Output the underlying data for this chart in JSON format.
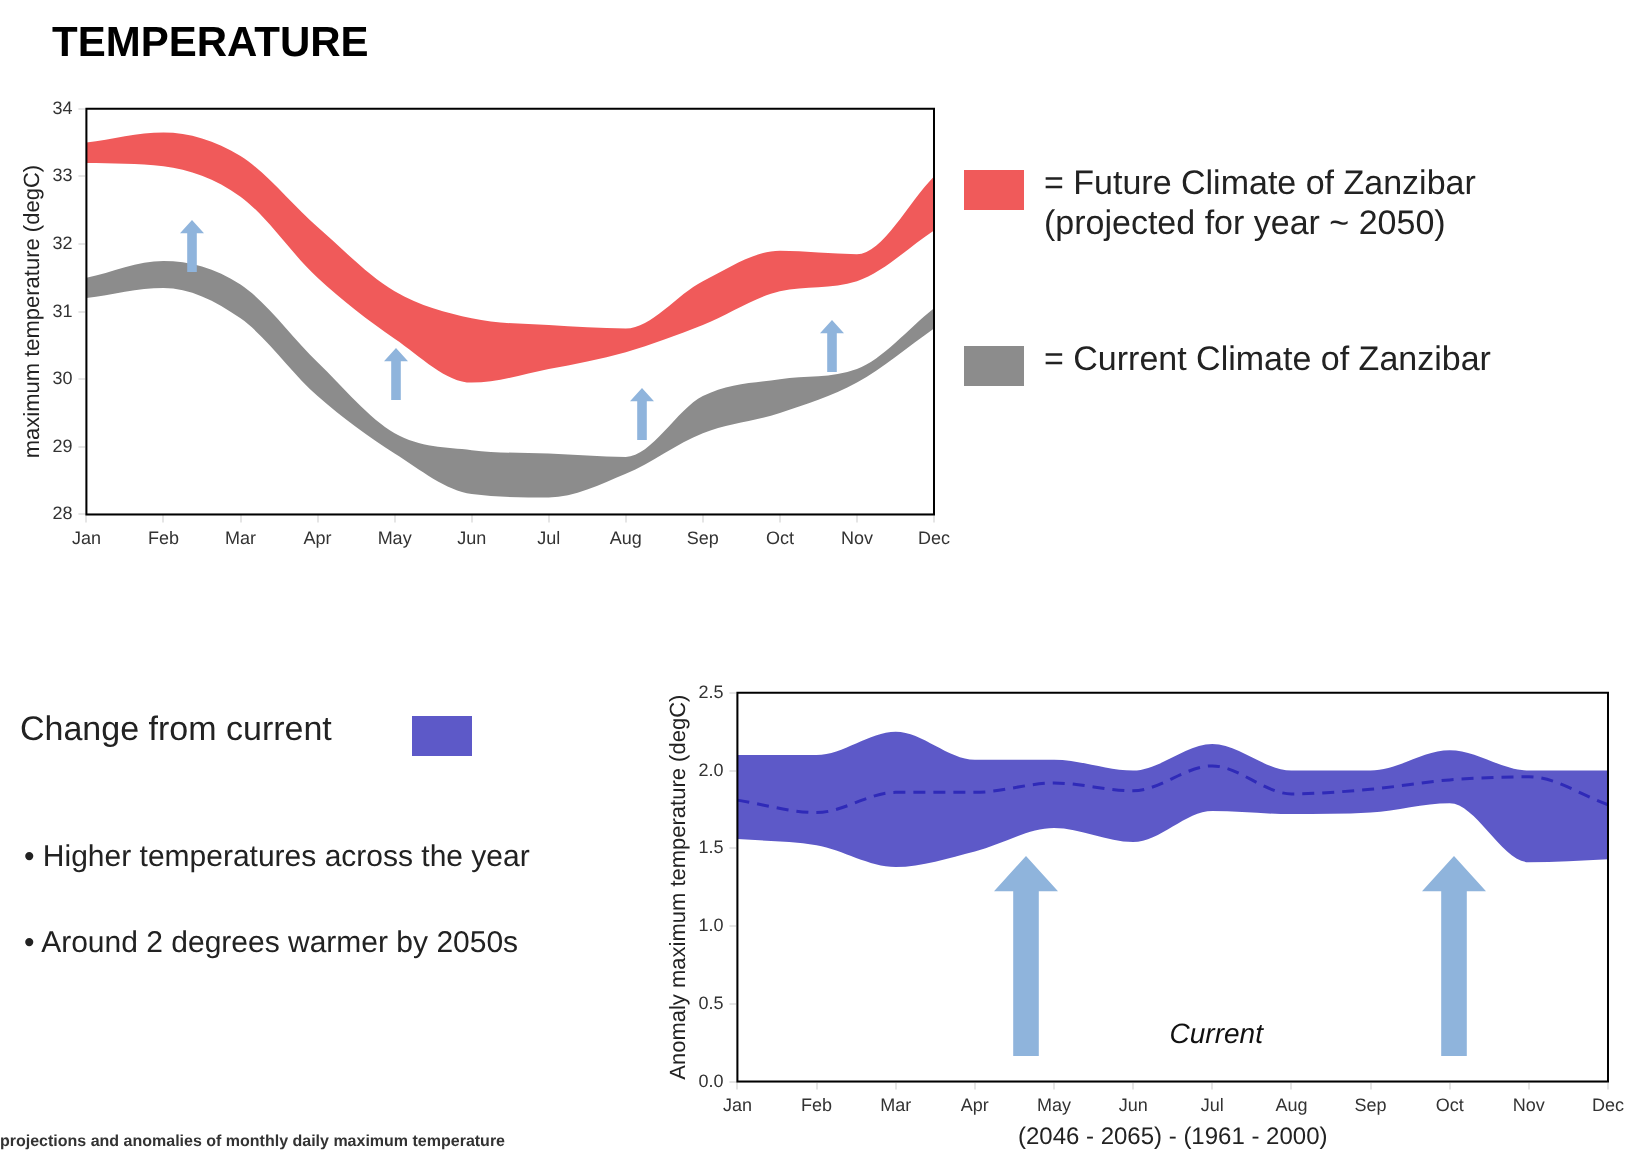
{
  "chart_data": [
    {
      "type": "area",
      "title": "TEMPERATURE",
      "ylabel": "maximum temperature (degC)",
      "categories": [
        "Jan",
        "Feb",
        "Mar",
        "Apr",
        "May",
        "Jun",
        "Jul",
        "Aug",
        "Sep",
        "Oct",
        "Nov",
        "Dec"
      ],
      "series": [
        {
          "name": "= Future Climate of Zanzibar (projected for year ~ 2050)",
          "color": "#f05a5a",
          "values": [
            null,
            null,
            null,
            null,
            null,
            null,
            null,
            null,
            null,
            null,
            null,
            null
          ],
          "lower": [
            33.2,
            33.15,
            32.7,
            31.5,
            30.6,
            29.95,
            30.15,
            30.4,
            30.8,
            31.3,
            31.45,
            32.2
          ],
          "upper": [
            33.5,
            33.65,
            33.3,
            32.25,
            31.3,
            30.9,
            30.8,
            30.75,
            31.45,
            31.9,
            31.85,
            33.0
          ]
        },
        {
          "name": "= Current Climate of Zanzibar",
          "color": "#8c8c8c",
          "values": [
            null,
            null,
            null,
            null,
            null,
            null,
            null,
            null,
            null,
            null,
            null,
            null
          ],
          "lower": [
            31.2,
            31.35,
            30.9,
            29.75,
            28.9,
            28.3,
            28.25,
            28.6,
            29.2,
            29.5,
            29.95,
            30.75
          ],
          "upper": [
            31.5,
            31.75,
            31.4,
            30.25,
            29.2,
            28.95,
            28.9,
            28.85,
            29.75,
            30.0,
            30.15,
            31.05
          ]
        }
      ],
      "ylim": [
        28,
        34
      ],
      "yticks": [
        28,
        29,
        30,
        31,
        32,
        33,
        34
      ],
      "grid": false,
      "legend": "right",
      "annotations": [
        "projections and anomalies of monthly daily maximum temperature"
      ]
    },
    {
      "type": "line",
      "xlabel": "(2046 - 2065) - (1961 - 2000)",
      "ylabel": "Anomaly maximum temperature (degC)",
      "categories": [
        "Jan",
        "Feb",
        "Mar",
        "Apr",
        "May",
        "Jun",
        "Jul",
        "Aug",
        "Sep",
        "Oct",
        "Nov",
        "Dec"
      ],
      "series": [
        {
          "name": "Change from current",
          "color": "#2f2ab8",
          "line_style": "dashed",
          "values": [
            1.81,
            1.73,
            1.86,
            1.86,
            1.92,
            1.87,
            2.03,
            1.85,
            1.88,
            1.94,
            1.96,
            1.78
          ],
          "lower": [
            1.56,
            1.52,
            1.38,
            1.48,
            1.63,
            1.54,
            1.74,
            1.72,
            1.73,
            1.79,
            1.41,
            1.43
          ],
          "upper": [
            2.1,
            2.1,
            2.25,
            2.07,
            2.07,
            2.0,
            2.17,
            2.0,
            2.0,
            2.13,
            2.0,
            2.0
          ]
        }
      ],
      "ylim": [
        0,
        2.5
      ],
      "yticks": [
        {
          "value": 0,
          "label": "0.0"
        },
        {
          "value": 0.5,
          "label": "0.5"
        },
        {
          "value": 1,
          "label": "1.0"
        },
        {
          "value": 1.5,
          "label": "1.5"
        },
        {
          "value": 2,
          "label": "2.0"
        },
        {
          "value": 2.5,
          "label": "2.5"
        }
      ],
      "grid": false,
      "legend": "left",
      "annotations": [
        "Current",
        "• Higher temperatures across the year",
        "• Around 2 degrees warmer by 2050s"
      ]
    }
  ]
}
